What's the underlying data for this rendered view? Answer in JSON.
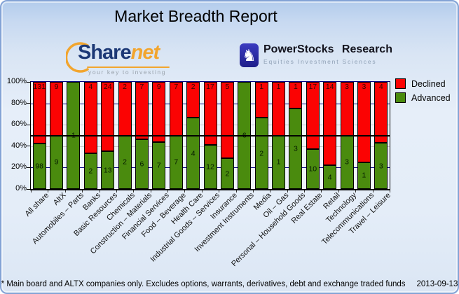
{
  "page": {
    "title": "Market Breadth Report"
  },
  "logos": {
    "sharenet": {
      "name_part1": "Share",
      "name_part2": "net",
      "tagline": "your key to investing"
    },
    "powerstocks": {
      "name": "PowerStocks Research",
      "tagline": "Equities Investment Sciences",
      "icon": "chess-knight-icon"
    }
  },
  "legend": [
    {
      "label": "Declined",
      "color": "#fb0303"
    },
    {
      "label": "Advanced",
      "color": "#4a8b0e"
    }
  ],
  "footer": {
    "note": "* Main board and ALTX companies only. Excludes options, warrants, derivatives, debt and exchange traded funds",
    "date": "2013-09-13"
  },
  "colors": {
    "declined": "#fb0303",
    "advanced": "#4a8b0e",
    "grid_major": "#000080",
    "grid_minor": "#c6c6c6",
    "midline": "#000000"
  },
  "chart_data": {
    "type": "bar",
    "stacked": true,
    "stacking": "percent",
    "title": "",
    "xlabel": "",
    "ylabel": "",
    "ylim": [
      0,
      100
    ],
    "yticks": [
      "100%",
      "80%",
      "60%",
      "40%",
      "20%",
      "0%"
    ],
    "legend_position": "top-right",
    "categories": [
      "All share",
      "AltX",
      "Automobiles – Parts",
      "Banks",
      "Basic Resources",
      "Chemicals",
      "Construction – Materials",
      "Financial Services",
      "Food – Beverage",
      "Health Care",
      "Industrial Goods – Services",
      "Insurance",
      "Investment Instruments",
      "Media",
      "Oil – Gas",
      "Personal – Household Goods",
      "Real Estate",
      "Retail",
      "Technology",
      "Telecommunications",
      "Travel – Leisure"
    ],
    "series": [
      {
        "name": "Declined",
        "color": "#fb0303",
        "values": [
          131,
          9,
          0,
          4,
          24,
          2,
          7,
          9,
          7,
          2,
          17,
          5,
          0,
          1,
          1,
          1,
          17,
          14,
          3,
          3,
          4
        ]
      },
      {
        "name": "Advanced",
        "color": "#4a8b0e",
        "values": [
          98,
          9,
          1,
          2,
          13,
          2,
          6,
          7,
          7,
          4,
          12,
          2,
          6,
          2,
          1,
          3,
          10,
          4,
          3,
          1,
          3
        ]
      }
    ],
    "reference_lines": [
      {
        "y": 100,
        "color": "#000080"
      },
      {
        "y": 80,
        "color": "#000080"
      },
      {
        "y": 60,
        "color": "#c6c6c6"
      },
      {
        "y": 50,
        "color": "#000000"
      },
      {
        "y": 40,
        "color": "#c6c6c6"
      },
      {
        "y": 20,
        "color": "#000080"
      }
    ]
  }
}
